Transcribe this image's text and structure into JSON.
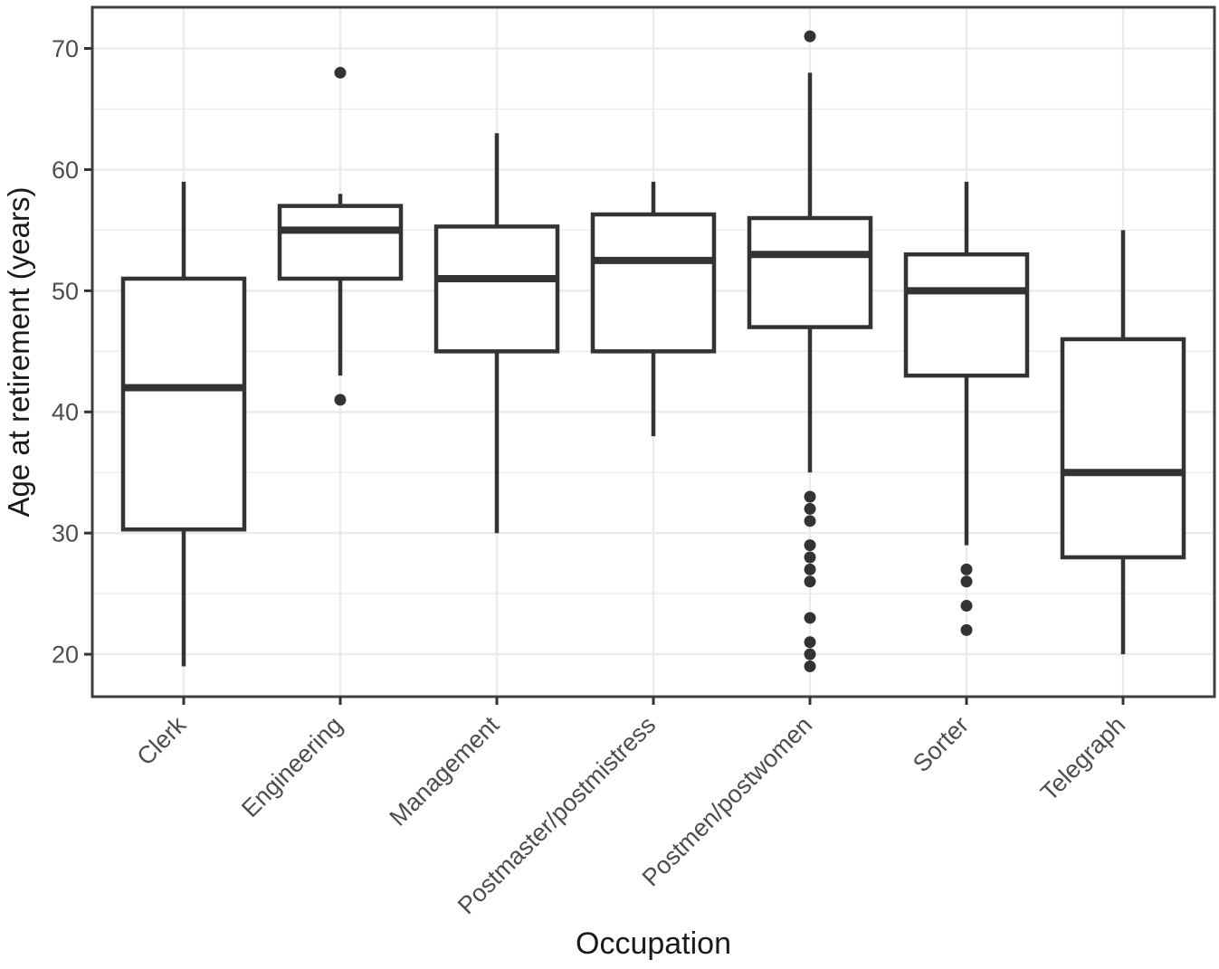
{
  "chart_data": {
    "type": "boxplot",
    "title": "",
    "xlabel": "Occupation",
    "ylabel": "Age at retirement (years)",
    "orientation": "vertical",
    "ylim": [
      16.5,
      73.4
    ],
    "yticks": [
      20,
      30,
      40,
      50,
      60,
      70
    ],
    "ytick_labels": [
      "20",
      "30",
      "40",
      "50",
      "60",
      "70"
    ],
    "yticks_minor": [
      25,
      35,
      45,
      55,
      65
    ],
    "grid": "horizontal major+minor lines, vertical major line at each category",
    "legend": "none",
    "categories": [
      "Clerk",
      "Engineering",
      "Management",
      "Postmaster/postmistress",
      "Postmen/postwomen",
      "Sorter",
      "Telegraph"
    ],
    "series": [
      {
        "category": "Clerk",
        "whisker_low": 19,
        "q1": 30.3,
        "median": 42,
        "q3": 51,
        "whisker_high": 59,
        "outliers": []
      },
      {
        "category": "Engineering",
        "whisker_low": 43,
        "q1": 51,
        "median": 55,
        "q3": 57,
        "whisker_high": 58,
        "outliers": [
          68,
          41
        ]
      },
      {
        "category": "Management",
        "whisker_low": 30,
        "q1": 45,
        "median": 51,
        "q3": 55.3,
        "whisker_high": 63,
        "outliers": []
      },
      {
        "category": "Postmaster/postmistress",
        "whisker_low": 38,
        "q1": 45,
        "median": 52.5,
        "q3": 56.3,
        "whisker_high": 59,
        "outliers": []
      },
      {
        "category": "Postmen/postwomen",
        "whisker_low": 35,
        "q1": 47,
        "median": 53,
        "q3": 56,
        "whisker_high": 68,
        "outliers": [
          71,
          33,
          32,
          31,
          29,
          28,
          27,
          26,
          23,
          21,
          20,
          19
        ]
      },
      {
        "category": "Sorter",
        "whisker_low": 29,
        "q1": 43,
        "median": 50,
        "q3": 53,
        "whisker_high": 59,
        "outliers": [
          27,
          26,
          24,
          22
        ]
      },
      {
        "category": "Telegraph",
        "whisker_low": 20,
        "q1": 28,
        "median": 35,
        "q3": 46,
        "whisker_high": 55,
        "outliers": []
      }
    ],
    "colors": {
      "background": "#ffffff",
      "panel_background": "#ffffff",
      "gridline": "#ebebeb",
      "box_stroke": "#333333",
      "box_fill": "#ffffff",
      "median": "#333333",
      "outlier": "#333333",
      "panel_border": "#404040",
      "tick": "#333333",
      "tick_label": "#4d4d4d",
      "axis_title": "#1a1a1a"
    }
  }
}
